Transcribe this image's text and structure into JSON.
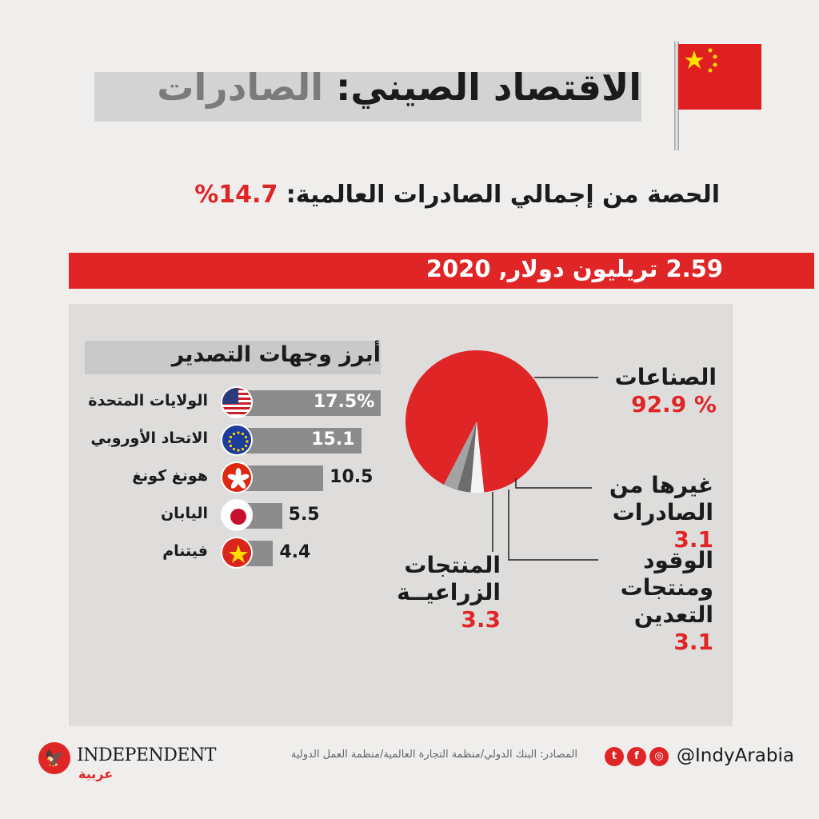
{
  "header": {
    "title_main": "الاقتصاد الصيني:",
    "title_sub": "الصادرات"
  },
  "share": {
    "label": "الحصة من إجمالي الصادرات العالمية:",
    "value": "14.7%"
  },
  "total": {
    "text": "2.59 تريليون دولار, 2020"
  },
  "chart_data": [
    {
      "type": "pie",
      "title": "",
      "slices": [
        {
          "label": "الصناعات",
          "value": 92.9,
          "value_text": "% 92.9",
          "color": "#e02527"
        },
        {
          "label": "غيرها من الصادرات",
          "value": 3.1,
          "value_text": "3.1",
          "color": "#f4f4f4"
        },
        {
          "label": "الوقود ومنتجات التعدين",
          "value": 3.1,
          "value_text": "3.1",
          "color": "#6d6d6d"
        },
        {
          "label": "المنتجات الزراعيــة",
          "value": 3.3,
          "value_text": "3.3",
          "color": "#a3a3a3"
        }
      ]
    },
    {
      "type": "bar",
      "title": "أبرز وجهات التصدير",
      "unit": "%",
      "categories": [
        "الولايات المتحدة",
        "الاتحاد الأوروبي",
        "هونغ كونغ",
        "اليابان",
        "فيتنام"
      ],
      "values": [
        17.5,
        15.1,
        10.5,
        5.5,
        4.4
      ],
      "value_labels": [
        "17.5%",
        "15.1",
        "10.5",
        "5.5",
        "4.4"
      ],
      "flags": [
        "us-flag-icon",
        "eu-flag-icon",
        "hong-kong-flag-icon",
        "japan-flag-icon",
        "vietnam-flag-icon"
      ]
    }
  ],
  "footer": {
    "source": "المصادر: البنك الدولي/منظمة التجارة العالمية/منظمة العمل الدولية",
    "handle": "@IndyArabia",
    "logo": "INDEPENDENT",
    "logo_sub": "عربية"
  },
  "colors": {
    "accent": "#e02527",
    "panel": "#dedddb"
  }
}
